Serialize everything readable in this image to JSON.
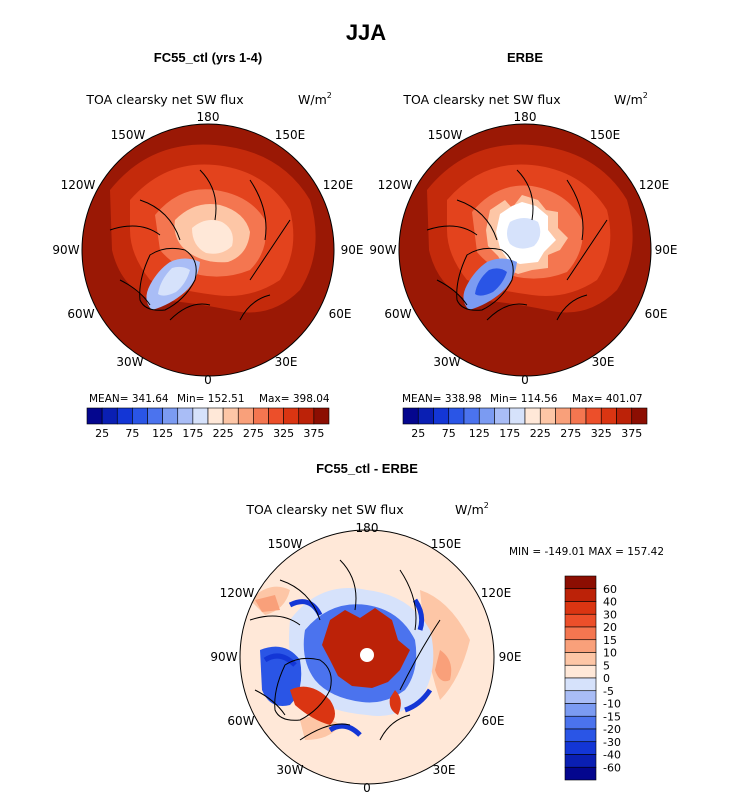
{
  "main_title": "JJA",
  "panels": [
    {
      "id": "model",
      "header": "FC55_ctl (yrs 1-4)",
      "subtitle": "TOA clearsky net SW flux",
      "units_base": "W/m",
      "units_exp": "2",
      "lon_labels": {
        "n": "180",
        "nw": "150W",
        "ne": "150E",
        "wnw": "120W",
        "ene": "120E",
        "w": "90W",
        "e": "90E",
        "wsw": "60W",
        "ese": "60E",
        "sw": "30W",
        "se": "30E",
        "s": "0"
      },
      "stats": {
        "mean": "MEAN= 341.64",
        "min": "Min= 152.51",
        "max": "Max= 398.04"
      }
    },
    {
      "id": "obs",
      "header": "ERBE",
      "subtitle": "TOA clearsky net SW flux",
      "units_base": "W/m",
      "units_exp": "2",
      "lon_labels": {
        "n": "180",
        "nw": "150W",
        "ne": "150E",
        "wnw": "120W",
        "ene": "120E",
        "w": "90W",
        "e": "90E",
        "wsw": "60W",
        "ese": "60E",
        "sw": "30W",
        "se": "30E",
        "s": "0"
      },
      "stats": {
        "mean": "MEAN= 338.98",
        "min": "Min= 114.56",
        "max": "Max= 401.07"
      }
    },
    {
      "id": "diff",
      "header": "FC55_ctl - ERBE",
      "subtitle": "TOA clearsky net SW flux",
      "units_base": "W/m",
      "units_exp": "2",
      "lon_labels": {
        "n": "180",
        "nw": "150W",
        "ne": "150E",
        "wnw": "120W",
        "ene": "120E",
        "w": "90W",
        "e": "90E",
        "wsw": "60W",
        "ese": "60E",
        "sw": "30W",
        "se": "30E",
        "s": "0"
      },
      "stats": {
        "minmax": "MIN = -149.01 MAX = 157.42"
      }
    }
  ],
  "chart_data": [
    {
      "type": "heatmap",
      "title": "FC55_ctl (yrs 1-4)",
      "variable": "TOA clearsky net SW flux",
      "units": "W/m2",
      "projection": "north polar stereographic",
      "stats": {
        "mean": 341.64,
        "min": 152.51,
        "max": 398.04
      },
      "colorbar": {
        "orientation": "horizontal",
        "levels": [
          0,
          25,
          50,
          75,
          100,
          125,
          150,
          175,
          200,
          225,
          250,
          275,
          300,
          325,
          350,
          375,
          400
        ],
        "tick_labels": [
          "25",
          "75",
          "125",
          "175",
          "225",
          "275",
          "325",
          "375"
        ],
        "colors": [
          "#04068e",
          "#0a1fb3",
          "#1336d6",
          "#2a55e6",
          "#4b73ee",
          "#7b9bf2",
          "#a9bdf6",
          "#d6e2fb",
          "#ffe8d8",
          "#fdc6a6",
          "#f9a07a",
          "#f47650",
          "#ec4f2a",
          "#da3512",
          "#bc2208",
          "#8c0e02"
        ]
      }
    },
    {
      "type": "heatmap",
      "title": "ERBE",
      "variable": "TOA clearsky net SW flux",
      "units": "W/m2",
      "projection": "north polar stereographic",
      "stats": {
        "mean": 338.98,
        "min": 114.56,
        "max": 401.07
      },
      "colorbar": {
        "orientation": "horizontal",
        "levels": [
          0,
          25,
          50,
          75,
          100,
          125,
          150,
          175,
          200,
          225,
          250,
          275,
          300,
          325,
          350,
          375,
          400
        ],
        "tick_labels": [
          "25",
          "75",
          "125",
          "175",
          "225",
          "275",
          "325",
          "375"
        ],
        "colors": [
          "#04068e",
          "#0a1fb3",
          "#1336d6",
          "#2a55e6",
          "#4b73ee",
          "#7b9bf2",
          "#a9bdf6",
          "#d6e2fb",
          "#ffe8d8",
          "#fdc6a6",
          "#f9a07a",
          "#f47650",
          "#ec4f2a",
          "#da3512",
          "#bc2208",
          "#8c0e02"
        ]
      }
    },
    {
      "type": "heatmap",
      "title": "FC55_ctl - ERBE",
      "variable": "TOA clearsky net SW flux",
      "units": "W/m2",
      "projection": "north polar stereographic",
      "stats": {
        "min": -149.01,
        "max": 157.42
      },
      "colorbar": {
        "orientation": "vertical",
        "tick_labels": [
          "60",
          "40",
          "30",
          "20",
          "15",
          "10",
          "5",
          "0",
          "-5",
          "-10",
          "-15",
          "-20",
          "-30",
          "-40",
          "-60"
        ],
        "colors": [
          "#8c0e02",
          "#bc2208",
          "#da3512",
          "#ec4f2a",
          "#f47650",
          "#f9a07a",
          "#fdc6a6",
          "#ffe8d8",
          "#d6e2fb",
          "#a9bdf6",
          "#7b9bf2",
          "#4b73ee",
          "#2a55e6",
          "#1336d6",
          "#0a1fb3",
          "#04068e"
        ]
      }
    }
  ]
}
